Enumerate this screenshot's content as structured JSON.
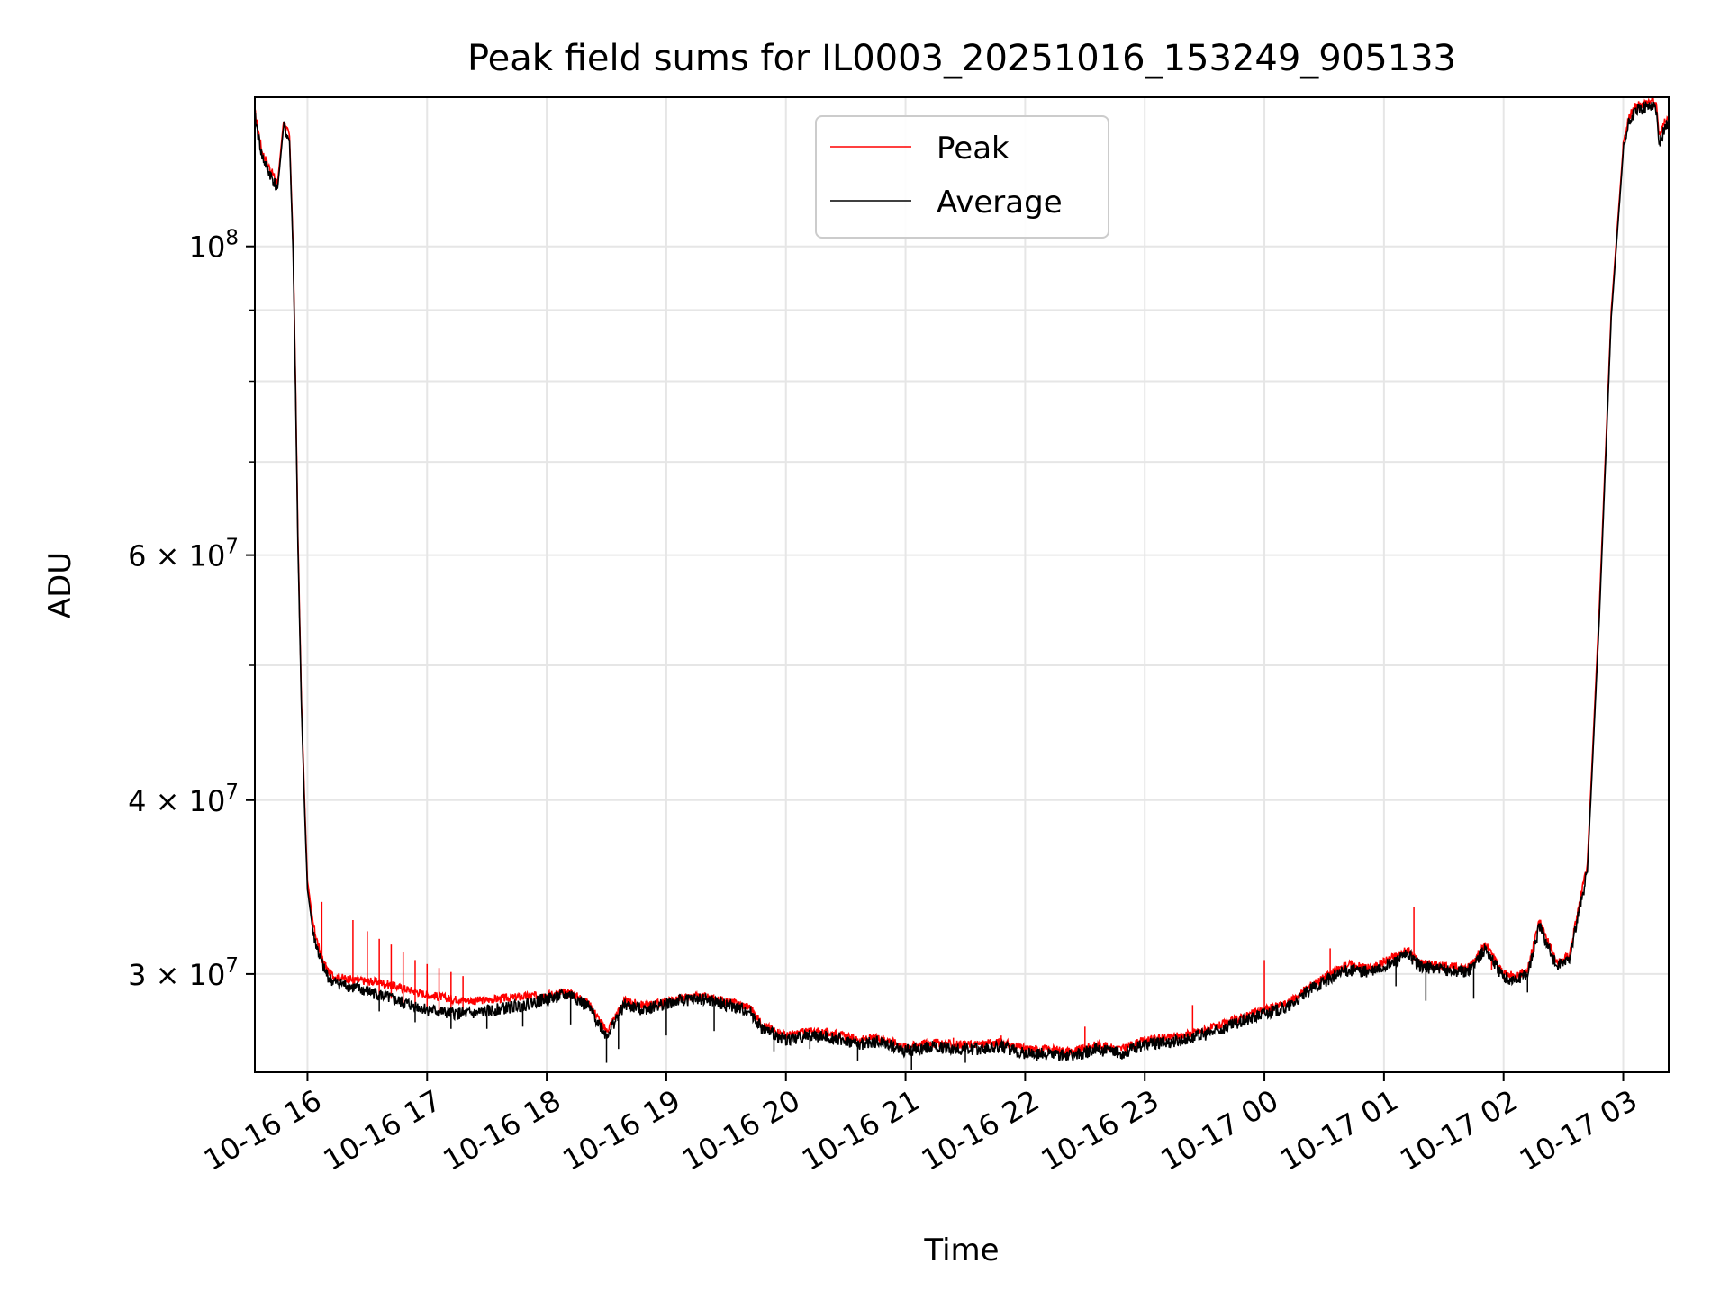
{
  "chart_data": {
    "type": "line",
    "title": "Peak field sums for IL0003_20251016_153249_905133",
    "xlabel": "Time",
    "ylabel": "ADU",
    "yscale": "log",
    "ylim": [
      25500000,
      128000000
    ],
    "xlim_hours": [
      -0.44,
      11.38
    ],
    "x_unit": "hours after 2025-10-16 16:00",
    "grid": true,
    "legend_position": "upper center",
    "x_tick_labels": [
      "10-16 16",
      "10-16 17",
      "10-16 18",
      "10-16 19",
      "10-16 20",
      "10-16 21",
      "10-16 22",
      "10-16 23",
      "10-17 00",
      "10-17 01",
      "10-17 02",
      "10-17 03"
    ],
    "x_tick_hours": [
      0,
      1,
      2,
      3,
      4,
      5,
      6,
      7,
      8,
      9,
      10,
      11
    ],
    "y_major_ticks": [
      {
        "value": 100000000,
        "label_base": "10",
        "label_exp": "8"
      },
      {
        "value": 60000000,
        "label_base": "6 × 10",
        "label_exp": "7"
      },
      {
        "value": 40000000,
        "label_base": "4 × 10",
        "label_exp": "7"
      },
      {
        "value": 30000000,
        "label_base": "3 × 10",
        "label_exp": "7"
      }
    ],
    "y_minor_ticks": [
      50000000,
      70000000,
      80000000,
      90000000
    ],
    "series": [
      {
        "name": "Peak",
        "color": "#ff0000",
        "x": [
          -0.44,
          -0.38,
          -0.32,
          -0.25,
          -0.2,
          -0.15,
          -0.12,
          -0.1,
          -0.08,
          -0.05,
          -0.02,
          0.0,
          0.05,
          0.1,
          0.14,
          0.18,
          0.22,
          0.3,
          0.4,
          0.6,
          0.8,
          1.0,
          1.2,
          1.4,
          1.6,
          1.8,
          2.0,
          2.2,
          2.35,
          2.5,
          2.65,
          2.8,
          2.95,
          3.1,
          3.3,
          3.5,
          3.7,
          3.8,
          4.0,
          4.2,
          4.4,
          4.6,
          4.8,
          5.0,
          5.2,
          5.4,
          5.6,
          5.8,
          6.0,
          6.2,
          6.4,
          6.6,
          6.8,
          7.0,
          7.2,
          7.4,
          7.6,
          7.8,
          8.0,
          8.2,
          8.4,
          8.55,
          8.7,
          8.9,
          9.05,
          9.2,
          9.3,
          9.5,
          9.7,
          9.85,
          10.0,
          10.1,
          10.2,
          10.3,
          10.45,
          10.55,
          10.7,
          10.8,
          10.9,
          11.0,
          11.05,
          11.1,
          11.15,
          11.2,
          11.25,
          11.28,
          11.3,
          11.35,
          11.38
        ],
        "y": [
          125000000,
          117000000,
          114000000,
          111000000,
          123000000,
          120000000,
          100000000,
          80000000,
          62000000,
          47000000,
          39000000,
          35000000,
          32500000,
          31200000,
          30500000,
          30100000,
          29900000,
          29800000,
          29700000,
          29600000,
          29300000,
          29000000,
          28800000,
          28700000,
          28800000,
          28900000,
          29000000,
          29100000,
          28600000,
          27300000,
          28700000,
          28500000,
          28600000,
          28800000,
          28900000,
          28700000,
          28400000,
          27600000,
          27100000,
          27300000,
          27200000,
          26900000,
          27000000,
          26600000,
          26800000,
          26700000,
          26700000,
          26800000,
          26500000,
          26500000,
          26400000,
          26700000,
          26500000,
          26900000,
          27000000,
          27200000,
          27500000,
          27900000,
          28300000,
          28600000,
          29500000,
          30000000,
          30500000,
          30300000,
          30800000,
          31200000,
          30600000,
          30400000,
          30300000,
          31500000,
          30000000,
          29900000,
          30200000,
          32800000,
          30500000,
          31000000,
          36000000,
          55000000,
          90000000,
          118000000,
          124000000,
          126000000,
          126500000,
          127000000,
          127500000,
          126000000,
          120000000,
          123000000,
          124000000
        ],
        "spikes_x": [
          0.12,
          0.38,
          0.5,
          0.6,
          0.7,
          0.8,
          0.9,
          1.0,
          1.1,
          1.2,
          1.3,
          4.9,
          5.4,
          5.8,
          6.5,
          7.4,
          8.0,
          8.55,
          9.25,
          9.9
        ],
        "spikes_y": [
          33800000,
          32800000,
          32200000,
          31800000,
          31500000,
          31100000,
          30700000,
          30500000,
          30300000,
          30100000,
          29900000,
          26900000,
          27000000,
          27100000,
          27500000,
          28500000,
          30700000,
          31300000,
          33500000,
          30200000
        ]
      },
      {
        "name": "Average",
        "color": "#000000",
        "x": [
          -0.44,
          -0.38,
          -0.32,
          -0.25,
          -0.2,
          -0.15,
          -0.12,
          -0.1,
          -0.08,
          -0.05,
          -0.02,
          0.0,
          0.05,
          0.1,
          0.14,
          0.18,
          0.22,
          0.3,
          0.4,
          0.6,
          0.8,
          1.0,
          1.2,
          1.4,
          1.6,
          1.8,
          2.0,
          2.2,
          2.35,
          2.5,
          2.65,
          2.8,
          2.95,
          3.1,
          3.3,
          3.5,
          3.7,
          3.8,
          4.0,
          4.2,
          4.4,
          4.6,
          4.8,
          5.0,
          5.2,
          5.4,
          5.6,
          5.8,
          6.0,
          6.2,
          6.4,
          6.6,
          6.8,
          7.0,
          7.2,
          7.4,
          7.6,
          7.8,
          8.0,
          8.2,
          8.4,
          8.55,
          8.7,
          8.9,
          9.05,
          9.2,
          9.3,
          9.5,
          9.7,
          9.85,
          10.0,
          10.1,
          10.2,
          10.3,
          10.45,
          10.55,
          10.7,
          10.8,
          10.9,
          11.0,
          11.05,
          11.1,
          11.15,
          11.2,
          11.25,
          11.28,
          11.3,
          11.35,
          11.38
        ],
        "y": [
          124000000,
          116000000,
          113000000,
          110000000,
          122000000,
          119000000,
          99000000,
          79000000,
          61000000,
          46500000,
          38500000,
          34500000,
          32000000,
          30900000,
          30200000,
          29800000,
          29600000,
          29500000,
          29300000,
          29000000,
          28600000,
          28300000,
          28100000,
          28100000,
          28300000,
          28500000,
          28800000,
          29000000,
          28400000,
          27100000,
          28500000,
          28300000,
          28500000,
          28700000,
          28800000,
          28500000,
          28200000,
          27400000,
          26900000,
          27100000,
          27000000,
          26700000,
          26800000,
          26400000,
          26600000,
          26500000,
          26500000,
          26600000,
          26300000,
          26300000,
          26200000,
          26500000,
          26300000,
          26700000,
          26800000,
          27000000,
          27300000,
          27700000,
          28100000,
          28400000,
          29300000,
          29800000,
          30200000,
          30100000,
          30500000,
          31000000,
          30400000,
          30200000,
          30100000,
          31300000,
          29800000,
          29700000,
          30000000,
          32500000,
          30300000,
          30800000,
          35500000,
          54000000,
          89000000,
          117000000,
          123000000,
          125000000,
          125500000,
          126000000,
          126500000,
          125000000,
          118000000,
          122000000,
          123000000
        ],
        "dips_x": [
          0.6,
          0.9,
          1.2,
          1.5,
          1.8,
          2.2,
          2.5,
          2.6,
          3.0,
          3.4,
          3.9,
          4.2,
          4.6,
          5.05,
          5.5,
          6.1,
          9.1,
          9.35,
          9.75,
          10.2
        ],
        "dips_y": [
          28200000,
          27700000,
          27400000,
          27400000,
          27500000,
          27600000,
          25900000,
          26500000,
          27100000,
          27300000,
          26400000,
          26500000,
          26000000,
          25600000,
          25900000,
          26000000,
          29400000,
          28700000,
          28800000,
          29100000
        ]
      }
    ]
  }
}
